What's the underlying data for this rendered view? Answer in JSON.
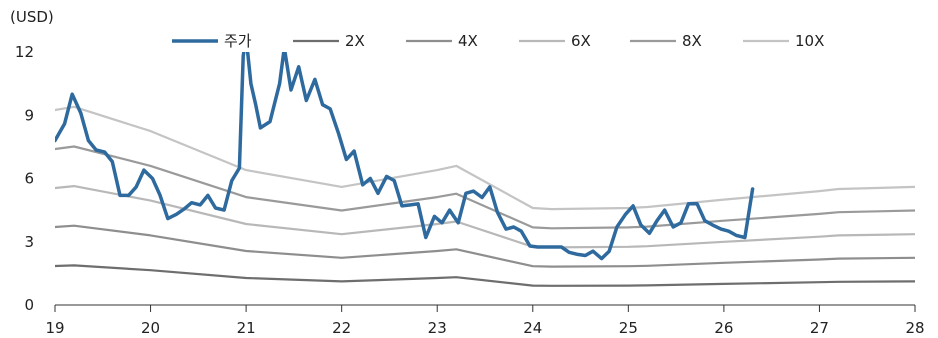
{
  "chart_data": {
    "type": "line",
    "unit_label": "(USD)",
    "xlim": [
      19,
      28
    ],
    "ylim": [
      0,
      12
    ],
    "x_ticks": [
      "19",
      "20",
      "21",
      "22",
      "23",
      "24",
      "25",
      "26",
      "27",
      "28"
    ],
    "y_ticks": [
      "0",
      "3",
      "6",
      "9",
      "12"
    ],
    "legend_position": "top",
    "grid": false,
    "series": [
      {
        "name": "주가",
        "color": "#2e6a9e",
        "points": [
          [
            19.0,
            7.8
          ],
          [
            19.1,
            8.6
          ],
          [
            19.18,
            10.0
          ],
          [
            19.27,
            9.1
          ],
          [
            19.35,
            7.8
          ],
          [
            19.43,
            7.35
          ],
          [
            19.52,
            7.25
          ],
          [
            19.6,
            6.8
          ],
          [
            19.68,
            5.2
          ],
          [
            19.77,
            5.2
          ],
          [
            19.85,
            5.6
          ],
          [
            19.93,
            6.4
          ],
          [
            20.02,
            6.0
          ],
          [
            20.1,
            5.2
          ],
          [
            20.18,
            4.1
          ],
          [
            20.27,
            4.3
          ],
          [
            20.35,
            4.55
          ],
          [
            20.43,
            4.85
          ],
          [
            20.52,
            4.75
          ],
          [
            20.6,
            5.2
          ],
          [
            20.68,
            4.6
          ],
          [
            20.77,
            4.5
          ],
          [
            20.85,
            5.9
          ],
          [
            20.93,
            6.5
          ],
          [
            20.97,
            11.8
          ],
          [
            21.0,
            12.7
          ],
          [
            21.05,
            10.5
          ],
          [
            21.1,
            9.5
          ],
          [
            21.15,
            8.4
          ],
          [
            21.25,
            8.7
          ],
          [
            21.35,
            10.5
          ],
          [
            21.4,
            12.2
          ],
          [
            21.47,
            10.2
          ],
          [
            21.55,
            11.3
          ],
          [
            21.63,
            9.7
          ],
          [
            21.72,
            10.7
          ],
          [
            21.8,
            9.5
          ],
          [
            21.88,
            9.3
          ],
          [
            21.97,
            8.1
          ],
          [
            22.05,
            6.9
          ],
          [
            22.13,
            7.3
          ],
          [
            22.22,
            5.7
          ],
          [
            22.3,
            6.0
          ],
          [
            22.38,
            5.3
          ],
          [
            22.47,
            6.1
          ],
          [
            22.55,
            5.9
          ],
          [
            22.63,
            4.7
          ],
          [
            22.72,
            4.75
          ],
          [
            22.8,
            4.8
          ],
          [
            22.88,
            3.2
          ],
          [
            22.97,
            4.2
          ],
          [
            23.05,
            3.9
          ],
          [
            23.13,
            4.5
          ],
          [
            23.22,
            3.9
          ],
          [
            23.3,
            5.3
          ],
          [
            23.38,
            5.4
          ],
          [
            23.47,
            5.1
          ],
          [
            23.55,
            5.6
          ],
          [
            23.63,
            4.4
          ],
          [
            23.72,
            3.6
          ],
          [
            23.8,
            3.7
          ],
          [
            23.88,
            3.5
          ],
          [
            23.97,
            2.8
          ],
          [
            24.05,
            2.75
          ],
          [
            24.13,
            2.75
          ],
          [
            24.22,
            2.75
          ],
          [
            24.3,
            2.75
          ],
          [
            24.38,
            2.5
          ],
          [
            24.47,
            2.4
          ],
          [
            24.55,
            2.35
          ],
          [
            24.63,
            2.55
          ],
          [
            24.72,
            2.2
          ],
          [
            24.8,
            2.55
          ],
          [
            24.88,
            3.7
          ],
          [
            24.97,
            4.3
          ],
          [
            25.05,
            4.7
          ],
          [
            25.13,
            3.8
          ],
          [
            25.22,
            3.4
          ],
          [
            25.3,
            4.0
          ],
          [
            25.38,
            4.5
          ],
          [
            25.47,
            3.7
          ],
          [
            25.55,
            3.9
          ],
          [
            25.63,
            4.8
          ],
          [
            25.72,
            4.8
          ],
          [
            25.8,
            4.0
          ],
          [
            25.88,
            3.8
          ],
          [
            25.97,
            3.6
          ],
          [
            26.05,
            3.5
          ],
          [
            26.13,
            3.3
          ],
          [
            26.22,
            3.2
          ],
          [
            26.3,
            5.5
          ]
        ]
      },
      {
        "name": "2X",
        "color": "#6e6e6e",
        "points": [
          [
            19.0,
            1.85
          ],
          [
            19.2,
            1.88
          ],
          [
            20.0,
            1.65
          ],
          [
            21.0,
            1.28
          ],
          [
            22.0,
            1.12
          ],
          [
            23.0,
            1.28
          ],
          [
            23.2,
            1.32
          ],
          [
            24.0,
            0.92
          ],
          [
            24.2,
            0.91
          ],
          [
            25.0,
            0.92
          ],
          [
            25.2,
            0.93
          ],
          [
            26.0,
            1.0
          ],
          [
            27.0,
            1.08
          ],
          [
            27.2,
            1.1
          ],
          [
            28.0,
            1.12
          ]
        ]
      },
      {
        "name": "4X",
        "color": "#8e8e8e",
        "points": [
          [
            19.0,
            3.7
          ],
          [
            19.2,
            3.76
          ],
          [
            20.0,
            3.3
          ],
          [
            21.0,
            2.56
          ],
          [
            22.0,
            2.24
          ],
          [
            23.0,
            2.56
          ],
          [
            23.2,
            2.64
          ],
          [
            24.0,
            1.84
          ],
          [
            24.2,
            1.82
          ],
          [
            25.0,
            1.84
          ],
          [
            25.2,
            1.86
          ],
          [
            26.0,
            2.0
          ],
          [
            27.0,
            2.16
          ],
          [
            27.2,
            2.2
          ],
          [
            28.0,
            2.24
          ]
        ]
      },
      {
        "name": "6X",
        "color": "#b8b8b8",
        "points": [
          [
            19.0,
            5.55
          ],
          [
            19.2,
            5.64
          ],
          [
            20.0,
            4.95
          ],
          [
            21.0,
            3.84
          ],
          [
            22.0,
            3.36
          ],
          [
            23.0,
            3.84
          ],
          [
            23.2,
            3.96
          ],
          [
            24.0,
            2.76
          ],
          [
            24.2,
            2.73
          ],
          [
            25.0,
            2.76
          ],
          [
            25.2,
            2.79
          ],
          [
            26.0,
            3.0
          ],
          [
            27.0,
            3.24
          ],
          [
            27.2,
            3.3
          ],
          [
            28.0,
            3.36
          ]
        ]
      },
      {
        "name": "8X",
        "color": "#9a9a9a",
        "points": [
          [
            19.0,
            7.4
          ],
          [
            19.2,
            7.52
          ],
          [
            20.0,
            6.6
          ],
          [
            21.0,
            5.12
          ],
          [
            22.0,
            4.48
          ],
          [
            23.0,
            5.12
          ],
          [
            23.2,
            5.28
          ],
          [
            24.0,
            3.68
          ],
          [
            24.2,
            3.64
          ],
          [
            25.0,
            3.68
          ],
          [
            25.2,
            3.72
          ],
          [
            26.0,
            4.0
          ],
          [
            27.0,
            4.32
          ],
          [
            27.2,
            4.4
          ],
          [
            28.0,
            4.48
          ]
        ]
      },
      {
        "name": "10X",
        "color": "#c4c4c4",
        "points": [
          [
            19.0,
            9.25
          ],
          [
            19.2,
            9.4
          ],
          [
            20.0,
            8.25
          ],
          [
            21.0,
            6.4
          ],
          [
            22.0,
            5.6
          ],
          [
            23.0,
            6.4
          ],
          [
            23.2,
            6.6
          ],
          [
            24.0,
            4.6
          ],
          [
            24.2,
            4.55
          ],
          [
            25.0,
            4.6
          ],
          [
            25.2,
            4.65
          ],
          [
            26.0,
            5.0
          ],
          [
            27.0,
            5.4
          ],
          [
            27.2,
            5.5
          ],
          [
            28.0,
            5.6
          ]
        ]
      }
    ],
    "band_multipliers": [
      2,
      4,
      6,
      8,
      10
    ]
  }
}
